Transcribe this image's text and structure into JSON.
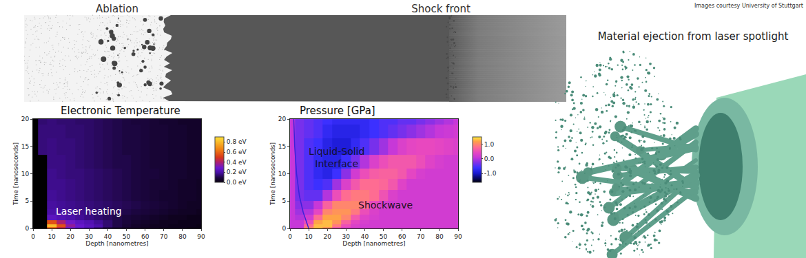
{
  "banner": {
    "labels": [
      "Ablation",
      "Shock front"
    ]
  },
  "render": {
    "title": "Material ejection from laser spotlight"
  },
  "credit": "Images courtesy University of Stuttgart",
  "chart_data": [
    {
      "type": "heatmap",
      "title": "Electronic Temperature",
      "x_label": "Depth [nanometres]",
      "y_label": "Time [nanoseconds]",
      "x": [
        0,
        5,
        10,
        15,
        20,
        25,
        30,
        35,
        40,
        45,
        50,
        55,
        60,
        65,
        70,
        75,
        80,
        85,
        90
      ],
      "y": [
        0,
        0.5,
        1,
        2,
        3,
        4,
        6,
        8,
        10,
        12,
        15,
        18,
        20
      ],
      "cells": [
        [
          null,
          null,
          0.6,
          0.45,
          0.3,
          0.25,
          0.2,
          0.15,
          0.1,
          0.07,
          0.05,
          0.04,
          0.03,
          0.03,
          0.02,
          0.02,
          0.02,
          0.01,
          0.01
        ],
        [
          null,
          null,
          0.8,
          0.55,
          0.35,
          0.28,
          0.24,
          0.2,
          0.14,
          0.1,
          0.07,
          0.05,
          0.04,
          0.03,
          0.03,
          0.02,
          0.02,
          0.02,
          0.01
        ],
        [
          null,
          null,
          0.55,
          0.4,
          0.3,
          0.25,
          0.22,
          0.18,
          0.14,
          0.1,
          0.08,
          0.06,
          0.05,
          0.04,
          0.03,
          0.03,
          0.02,
          0.02,
          0.02
        ],
        [
          null,
          null,
          0.25,
          0.22,
          0.2,
          0.18,
          0.16,
          0.14,
          0.12,
          0.1,
          0.08,
          0.07,
          0.06,
          0.05,
          0.04,
          0.03,
          0.03,
          0.02,
          0.02
        ],
        [
          null,
          null,
          0.2,
          0.19,
          0.18,
          0.17,
          0.16,
          0.14,
          0.13,
          0.12,
          0.1,
          0.09,
          0.08,
          0.07,
          0.06,
          0.05,
          0.04,
          0.04,
          0.03
        ],
        [
          null,
          null,
          0.19,
          0.18,
          0.17,
          0.16,
          0.15,
          0.14,
          0.13,
          0.12,
          0.11,
          0.1,
          0.09,
          0.08,
          0.07,
          0.06,
          0.05,
          0.04,
          0.04
        ],
        [
          null,
          null,
          0.18,
          0.17,
          0.16,
          0.15,
          0.14,
          0.13,
          0.12,
          0.11,
          0.1,
          0.09,
          0.08,
          0.07,
          0.06,
          0.06,
          0.05,
          0.05,
          0.04
        ],
        [
          null,
          null,
          0.17,
          0.17,
          0.16,
          0.15,
          0.14,
          0.13,
          0.12,
          0.11,
          0.1,
          0.09,
          0.08,
          0.07,
          0.07,
          0.06,
          0.05,
          0.05,
          0.04
        ],
        [
          null,
          null,
          0.17,
          0.16,
          0.15,
          0.15,
          0.14,
          0.13,
          0.12,
          0.11,
          0.1,
          0.09,
          0.08,
          0.08,
          0.07,
          0.06,
          0.06,
          0.05,
          0.05
        ],
        [
          null,
          null,
          0.16,
          0.16,
          0.15,
          0.14,
          0.13,
          0.12,
          0.11,
          0.1,
          0.1,
          0.09,
          0.08,
          0.07,
          0.07,
          0.06,
          0.06,
          0.05,
          0.05
        ],
        [
          null,
          0.15,
          0.16,
          0.15,
          0.15,
          0.14,
          0.13,
          0.12,
          0.11,
          0.1,
          0.09,
          0.09,
          0.08,
          0.07,
          0.07,
          0.06,
          0.06,
          0.05,
          0.05
        ],
        [
          null,
          0.15,
          0.15,
          0.15,
          0.14,
          0.14,
          0.13,
          0.12,
          0.11,
          0.1,
          0.09,
          0.09,
          0.08,
          0.07,
          0.07,
          0.06,
          0.06,
          0.05,
          0.05
        ],
        [
          null,
          0.14,
          0.15,
          0.14,
          0.14,
          0.13,
          0.13,
          0.12,
          0.11,
          0.1,
          0.09,
          0.08,
          0.08,
          0.07,
          0.06,
          0.06,
          0.05,
          0.05,
          0.05
        ]
      ],
      "xlim": [
        0,
        90
      ],
      "xticks": [
        0,
        10,
        20,
        30,
        40,
        50,
        60,
        70,
        80,
        90
      ],
      "ylim": [
        0,
        20
      ],
      "yticks": [
        0,
        5,
        10,
        15,
        20
      ],
      "colorbar": {
        "range": [
          0,
          0.9
        ],
        "ticks": [
          {
            "value": 0,
            "label": "0.0 eV"
          },
          {
            "value": 0.2,
            "label": "0.2 eV"
          },
          {
            "value": 0.4,
            "label": "0.4 eV"
          },
          {
            "value": 0.6,
            "label": "0.6 eV"
          },
          {
            "value": 0.8,
            "label": "0.8 eV"
          }
        ]
      },
      "annotations": [
        {
          "text": "Laser heating",
          "x": 30,
          "y": 3.1,
          "color": "#ffffff"
        }
      ]
    },
    {
      "type": "heatmap",
      "title": "Pressure [GPa]",
      "x_label": "Depth [nanometres]",
      "y_label": "Time [nanoseconds]",
      "x": [
        0,
        5,
        10,
        15,
        20,
        25,
        30,
        35,
        40,
        45,
        50,
        55,
        60,
        65,
        70,
        75,
        80,
        85,
        90
      ],
      "y": [
        0,
        0.5,
        1,
        2,
        3,
        4,
        6,
        8,
        10,
        12,
        15,
        18,
        20
      ],
      "cells": [
        [
          0.1,
          0.1,
          1.0,
          1.3,
          1.1,
          0.6,
          0.35,
          0.25,
          0.2,
          0.2,
          0.2,
          0.2,
          0.2,
          0.2,
          0.2,
          0.2,
          0.2,
          0.2,
          0.2
        ],
        [
          0.1,
          0.1,
          0.8,
          1.3,
          1.3,
          0.9,
          0.5,
          0.3,
          0.2,
          0.2,
          0.2,
          0.2,
          0.2,
          0.2,
          0.2,
          0.2,
          0.2,
          0.2,
          0.2
        ],
        [
          0.1,
          0.1,
          0.5,
          1.2,
          1.3,
          1.1,
          0.7,
          0.4,
          0.25,
          0.2,
          0.2,
          0.2,
          0.2,
          0.2,
          0.2,
          0.2,
          0.2,
          0.2,
          0.2
        ],
        [
          0.1,
          0.0,
          0.2,
          0.8,
          1.2,
          1.2,
          1.0,
          0.6,
          0.35,
          0.25,
          0.2,
          0.2,
          0.2,
          0.2,
          0.2,
          0.2,
          0.2,
          0.2,
          0.2
        ],
        [
          0.1,
          -0.1,
          0.0,
          0.4,
          1.0,
          1.1,
          1.1,
          0.9,
          0.5,
          0.3,
          0.2,
          0.2,
          0.2,
          0.2,
          0.2,
          0.2,
          0.2,
          0.2,
          0.2
        ],
        [
          0.1,
          -0.2,
          -0.2,
          0.1,
          0.7,
          1.0,
          1.0,
          1.0,
          0.8,
          0.45,
          0.25,
          0.2,
          0.2,
          0.2,
          0.2,
          0.2,
          0.2,
          0.2,
          0.2
        ],
        [
          0.1,
          -0.3,
          -0.4,
          -0.4,
          0.0,
          0.5,
          0.8,
          0.9,
          0.9,
          0.8,
          0.55,
          0.3,
          0.2,
          0.2,
          0.2,
          0.2,
          0.2,
          0.2,
          0.2
        ],
        [
          0.1,
          -0.3,
          -0.5,
          -0.6,
          -0.5,
          -0.1,
          0.3,
          0.6,
          0.8,
          0.8,
          0.75,
          0.6,
          0.35,
          0.2,
          0.2,
          0.2,
          0.2,
          0.2,
          0.2
        ],
        [
          0.1,
          -0.3,
          -0.5,
          -0.7,
          -0.8,
          -0.6,
          -0.2,
          0.2,
          0.5,
          0.65,
          0.7,
          0.7,
          0.6,
          0.4,
          0.25,
          0.2,
          0.2,
          0.2,
          0.2
        ],
        [
          0.1,
          -0.3,
          -0.5,
          -0.7,
          -0.8,
          -0.8,
          -0.6,
          -0.3,
          0.0,
          0.3,
          0.5,
          0.6,
          0.6,
          0.6,
          0.5,
          0.35,
          0.25,
          0.2,
          0.2
        ],
        [
          0.1,
          -0.3,
          -0.5,
          -0.6,
          -0.8,
          -0.9,
          -0.9,
          -0.7,
          -0.5,
          -0.3,
          -0.1,
          0.1,
          0.3,
          0.4,
          0.45,
          0.45,
          0.4,
          0.35,
          0.3
        ],
        [
          0.1,
          -0.3,
          -0.4,
          -0.5,
          -0.7,
          -0.8,
          -0.8,
          -0.8,
          -0.7,
          -0.6,
          -0.5,
          -0.4,
          -0.3,
          -0.2,
          -0.1,
          0.0,
          0.1,
          0.15,
          0.2
        ],
        [
          0.1,
          -0.3,
          -0.4,
          -0.5,
          -0.6,
          -0.7,
          -0.7,
          -0.7,
          -0.7,
          -0.6,
          -0.5,
          -0.5,
          -0.4,
          -0.4,
          -0.3,
          -0.2,
          -0.1,
          0.0,
          0.1
        ]
      ],
      "series": [
        {
          "x": [
            10,
            7,
            5,
            3.5,
            2.5,
            2
          ],
          "values": [
            0,
            3,
            6,
            10,
            15,
            20
          ],
          "color": "#3a22d8"
        }
      ],
      "xlim": [
        0,
        90
      ],
      "xticks": [
        0,
        10,
        20,
        30,
        40,
        50,
        60,
        70,
        80,
        90
      ],
      "ylim": [
        0,
        20
      ],
      "yticks": [
        0,
        5,
        10,
        15,
        20
      ],
      "colorbar": {
        "range": [
          -1.6,
          1.5
        ],
        "ticks": [
          {
            "value": -1,
            "label": "-1.0"
          },
          {
            "value": 0,
            "label": "0.0"
          },
          {
            "value": 1,
            "label": "1.0"
          }
        ]
      },
      "annotations": [
        {
          "text": [
            "Liquid-Solid",
            "Interface"
          ],
          "x": 25,
          "y": 13,
          "color": "#141030"
        },
        {
          "text": "Shockwave",
          "x": 51,
          "y": 4.3,
          "color": "#201020"
        }
      ]
    }
  ]
}
